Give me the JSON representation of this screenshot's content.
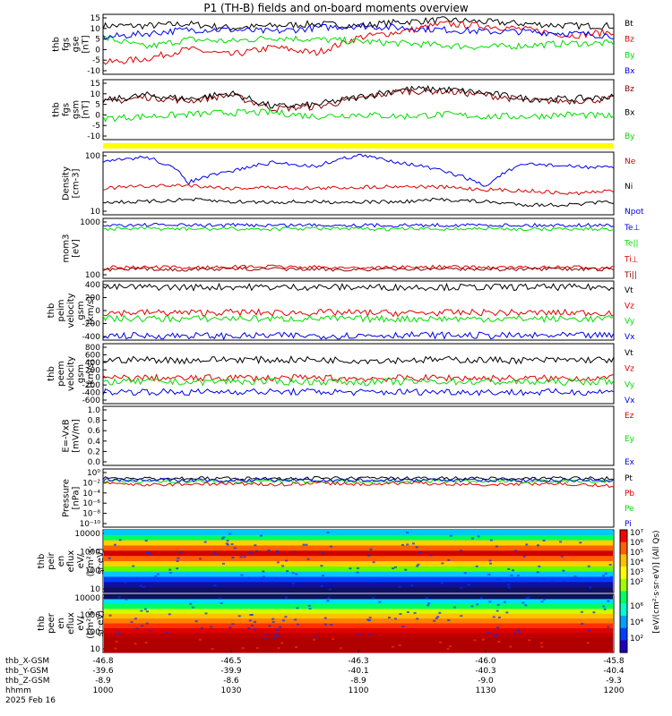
{
  "title": "P1 (TH-B) fields and on-board moments overview",
  "colors": {
    "black": "#000000",
    "red": "#e00000",
    "green": "#00dd00",
    "blue": "#0000ee",
    "darkred": "#8b0000",
    "yellow": "#ffff00"
  },
  "chart_data": [
    {
      "type": "line",
      "ylabel": [
        "thb",
        "fgs",
        "gse",
        "[nT]"
      ],
      "yticks": [
        "15",
        "10",
        "5",
        "0",
        "-5",
        "-10"
      ],
      "ylim": [
        -13,
        16
      ],
      "series": [
        {
          "name": "Bt",
          "color": "black",
          "values": [
            11,
            11,
            12,
            10,
            11,
            12,
            11,
            13,
            14,
            13,
            12,
            11,
            11
          ]
        },
        {
          "name": "Bz",
          "color": "red",
          "values": [
            -8,
            -6,
            -1,
            -4,
            0,
            -3,
            5,
            8,
            12,
            11,
            9,
            6,
            8
          ]
        },
        {
          "name": "By",
          "color": "green",
          "values": [
            5,
            0,
            4,
            3,
            5,
            4,
            3,
            2,
            1,
            0,
            1,
            2,
            2
          ]
        },
        {
          "name": "Bx",
          "color": "blue",
          "values": [
            5,
            7,
            9,
            9,
            8,
            10,
            11,
            10,
            9,
            8,
            8,
            7,
            6
          ]
        }
      ]
    },
    {
      "type": "line",
      "ylabel": [
        "thb",
        "fgs",
        "gsm",
        "[nT]"
      ],
      "yticks": [
        "15",
        "10",
        "5",
        "0",
        "-5",
        "-10"
      ],
      "ylim": [
        -13,
        16
      ],
      "series": [
        {
          "name": "Bz",
          "color": "darkred",
          "values": [
            5,
            8,
            6,
            9,
            2,
            3,
            7,
            11,
            11,
            9,
            6,
            6,
            7
          ]
        },
        {
          "name": "Bx",
          "color": "black",
          "values": [
            6,
            9,
            7,
            10,
            3,
            4,
            8,
            12,
            12,
            10,
            7,
            7,
            8
          ]
        },
        {
          "name": "By",
          "color": "green",
          "values": [
            -3,
            -2,
            -1,
            0,
            0,
            -2,
            -1,
            -2,
            -1,
            -2,
            -2,
            -1,
            -2
          ]
        }
      ]
    },
    {
      "type": "line",
      "ylabel": [
        "Density",
        "[cm-3]"
      ],
      "yticks": [
        "100",
        "10"
      ],
      "scale": "log",
      "ylim": [
        3,
        120
      ],
      "series": [
        {
          "name": "Ne",
          "color": "red",
          "values": [
            14,
            16,
            17,
            14,
            15,
            14,
            15,
            16,
            15,
            13,
            12,
            10,
            12
          ]
        },
        {
          "name": "Ni",
          "color": "black",
          "values": [
            6,
            6,
            7,
            6,
            6,
            6,
            6,
            6,
            7,
            6,
            5,
            5,
            6
          ]
        },
        {
          "name": "Npot",
          "color": "blue",
          "values": [
            70,
            100,
            20,
            40,
            70,
            55,
            110,
            70,
            40,
            15,
            65,
            55,
            50
          ]
        }
      ]
    },
    {
      "type": "line",
      "ylabel": [
        "mom3",
        "[eV]"
      ],
      "yticks": [
        "1000",
        "100"
      ],
      "scale": "log",
      "ylim": [
        15,
        2200
      ],
      "series": [
        {
          "name": "Te⊥",
          "color": "blue",
          "values": [
            1400,
            1450,
            1400,
            1420,
            1400,
            1450,
            1400,
            1400,
            1420,
            1430,
            1400,
            1420,
            1400
          ]
        },
        {
          "name": "Te||",
          "color": "green",
          "values": [
            1000,
            1050,
            1000,
            1020,
            1000,
            1050,
            1000,
            1000,
            1020,
            1030,
            1000,
            1020,
            1000
          ]
        },
        {
          "name": "Ti⊥",
          "color": "red",
          "values": [
            33,
            34,
            33,
            35,
            36,
            34,
            33,
            34,
            35,
            34,
            33,
            34,
            33
          ]
        },
        {
          "name": "Ti||",
          "color": "darkred",
          "values": [
            28,
            29,
            28,
            30,
            29,
            28,
            28,
            29,
            30,
            29,
            28,
            29,
            28
          ]
        }
      ]
    },
    {
      "type": "line",
      "ylabel": [
        "thb",
        "peim",
        "velocity",
        "gsm",
        "[km/s]"
      ],
      "yticks": [
        "400",
        "200",
        "0",
        "-200",
        "-400"
      ],
      "ylim": [
        -480,
        520
      ],
      "series": [
        {
          "name": "Vt",
          "color": "black",
          "values": [
            440,
            445,
            440,
            450,
            440,
            445,
            440,
            440,
            445,
            440,
            445,
            440,
            440
          ]
        },
        {
          "name": "Vz",
          "color": "red",
          "values": [
            -20,
            -15,
            -20,
            -10,
            -20,
            -15,
            -20,
            -25,
            -20,
            -15,
            -20,
            -20,
            -20
          ]
        },
        {
          "name": "Vy",
          "color": "green",
          "values": [
            -130,
            -125,
            -130,
            -120,
            -130,
            -125,
            -130,
            -130,
            -125,
            -130,
            -125,
            -130,
            -130
          ]
        },
        {
          "name": "Vx",
          "color": "blue",
          "values": [
            -430,
            -435,
            -430,
            -440,
            -430,
            -435,
            -430,
            -420,
            -425,
            -430,
            -435,
            -430,
            -430
          ]
        }
      ]
    },
    {
      "type": "line",
      "ylabel": [
        "thb",
        "peem",
        "velocity",
        "gsm",
        "[km/s]"
      ],
      "yticks": [
        "800",
        "600",
        "400",
        "200",
        "0",
        "-200",
        "-400",
        "-600"
      ],
      "ylim": [
        -700,
        850
      ],
      "series": [
        {
          "name": "Vt",
          "color": "black",
          "values": [
            450,
            460,
            440,
            470,
            450,
            460,
            440,
            450,
            460,
            450,
            440,
            450,
            460
          ]
        },
        {
          "name": "Vz",
          "color": "red",
          "values": [
            -50,
            -40,
            -60,
            -30,
            -50,
            -40,
            -60,
            -50,
            -40,
            -50,
            -60,
            -50,
            -40
          ]
        },
        {
          "name": "Vy",
          "color": "green",
          "values": [
            -150,
            -140,
            -160,
            -130,
            -150,
            -140,
            -160,
            -150,
            -140,
            -150,
            -160,
            -150,
            -140
          ]
        },
        {
          "name": "Vx",
          "color": "blue",
          "values": [
            -430,
            -420,
            -440,
            -410,
            -430,
            -420,
            -440,
            -430,
            -420,
            -430,
            -440,
            -430,
            -420
          ]
        }
      ]
    },
    {
      "type": "line",
      "ylabel": [
        "E=-VxB",
        "[mV/m]"
      ],
      "yticks": [
        "1.0",
        "0.8",
        "0.6",
        "0.4",
        "0.2",
        "0.0"
      ],
      "ylim": [
        -0.05,
        1.05
      ],
      "series": [
        {
          "name": "Ez",
          "color": "red",
          "values": []
        },
        {
          "name": "Ey",
          "color": "green",
          "values": []
        },
        {
          "name": "Ex",
          "color": "blue",
          "values": []
        }
      ]
    },
    {
      "type": "line",
      "ylabel": [
        "Pressure",
        "[nPa]"
      ],
      "yticks": [
        "10⁰",
        "10⁻²",
        "10⁻⁴",
        "10⁻⁶",
        "10⁻⁸",
        "10⁻¹⁰"
      ],
      "scale": "log",
      "ylim": [
        -10.5,
        1
      ],
      "series": [
        {
          "name": "Pt",
          "color": "black",
          "values": [
            -0.6,
            -0.6,
            -0.6,
            -0.6,
            -0.6,
            -0.6,
            -0.6,
            -0.6,
            -0.6,
            -0.6,
            -0.6,
            -0.6,
            -0.6
          ]
        },
        {
          "name": "Pb",
          "color": "red",
          "values": [
            -1.6,
            -2,
            -1.8,
            -1.7,
            -1.9,
            -1.6,
            -1.8,
            -1.6,
            -1.7,
            -1.9,
            -1.7,
            -1.8,
            -2.2
          ]
        },
        {
          "name": "Pe",
          "color": "green",
          "values": [
            -1.2,
            -1.2,
            -1.2,
            -1.2,
            -1.2,
            -1.2,
            -1.2,
            -1.2,
            -1.2,
            -1.2,
            -1.2,
            -1.2,
            -1.2
          ]
        },
        {
          "name": "Pi",
          "color": "blue",
          "values": [
            -1,
            -1,
            -1,
            -1,
            -1,
            -1,
            -1,
            -1,
            -1,
            -1,
            -1,
            -1,
            -1
          ]
        }
      ]
    },
    {
      "type": "heatmap",
      "ylabel": [
        "thb",
        "peir",
        "en",
        "eflux",
        "eV/",
        "(cm²·s·",
        "sr·eV)"
      ],
      "yticks": [
        "10000",
        "1000",
        "100",
        "10"
      ]
    },
    {
      "type": "heatmap",
      "ylabel": [
        "thb",
        "peer",
        "en",
        "eflux",
        "eV/",
        "(cm²·s·",
        "sr·eV)"
      ],
      "yticks": [
        "10000",
        "1000",
        "100",
        "10"
      ]
    }
  ],
  "colorbar": {
    "label": "[eV/(cm²·s·sr·eV)] (All Qs)",
    "ticks": [
      "10⁷",
      "10⁶",
      "10⁵",
      "10⁴",
      "10³",
      "10²"
    ],
    "ticks2": [
      "10⁶",
      "10⁴",
      "10²"
    ]
  },
  "x_axis": {
    "tick_times": [
      "1000",
      "1030",
      "1100",
      "1130",
      "1200"
    ],
    "rows": [
      {
        "label": "thb_X-GSM",
        "values": [
          "-46.8",
          "-46.5",
          "-46.3",
          "-46.0",
          "-45.8"
        ]
      },
      {
        "label": "thb_Y-GSM",
        "values": [
          "-39.6",
          "-39.9",
          "-40.1",
          "-40.3",
          "-40.4"
        ]
      },
      {
        "label": "thb_Z-GSM",
        "values": [
          "-8.9",
          "-8.6",
          "-8.9",
          "-9.0",
          "-9.3"
        ]
      },
      {
        "label": "hhmm",
        "values": [
          "1000",
          "1030",
          "1100",
          "1130",
          "1200"
        ]
      }
    ],
    "date": "2025 Feb 16"
  }
}
